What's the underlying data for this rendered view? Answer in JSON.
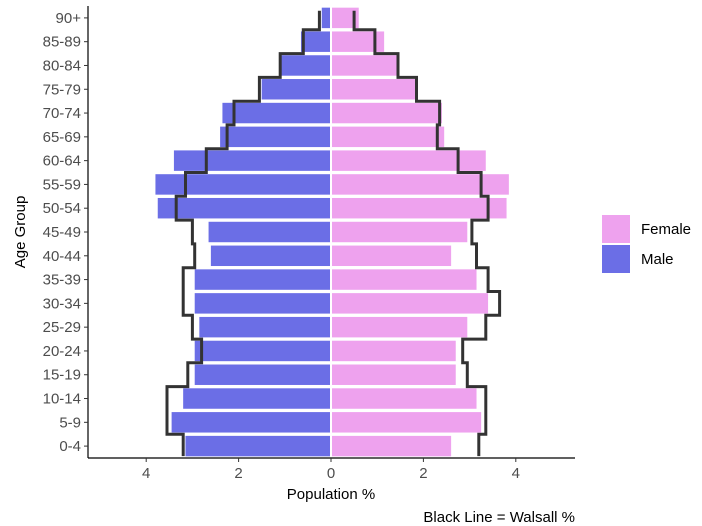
{
  "chart_data": {
    "type": "bar",
    "orientation": "horizontal-population-pyramid",
    "xlabel": "Population %",
    "ylabel": "Age Group",
    "caption": "Black Line = Walsall %",
    "xlim": [
      -5,
      5
    ],
    "xticks": [
      -4,
      -2,
      0,
      2,
      4
    ],
    "xtick_labels": [
      "4",
      "2",
      "0",
      "2",
      "4"
    ],
    "grid": false,
    "legend_placement": "right",
    "categories": [
      "0-4",
      "5-9",
      "10-14",
      "15-19",
      "20-24",
      "25-29",
      "30-34",
      "35-39",
      "40-44",
      "45-49",
      "50-54",
      "55-59",
      "60-64",
      "65-69",
      "70-74",
      "75-79",
      "80-84",
      "85-89",
      "90+"
    ],
    "series": [
      {
        "name": "Male",
        "color": "#6b6ee6",
        "side": "left",
        "values": [
          3.15,
          3.45,
          3.2,
          2.95,
          2.95,
          2.85,
          2.95,
          2.95,
          2.6,
          2.65,
          3.75,
          3.8,
          3.4,
          2.4,
          2.35,
          1.5,
          1.1,
          0.65,
          0.2
        ]
      },
      {
        "name": "Female",
        "color": "#eea2ee",
        "side": "right",
        "values": [
          2.6,
          3.25,
          3.15,
          2.7,
          2.7,
          2.95,
          3.4,
          3.15,
          2.6,
          2.95,
          3.8,
          3.85,
          3.35,
          2.45,
          2.4,
          1.85,
          1.45,
          1.15,
          0.6
        ]
      }
    ],
    "reference_line": {
      "color": "#333333",
      "male": [
        3.2,
        3.55,
        3.55,
        3.1,
        2.8,
        3.0,
        3.2,
        3.2,
        2.95,
        3.0,
        3.35,
        3.15,
        2.7,
        2.25,
        2.1,
        1.55,
        1.1,
        0.6,
        0.25
      ],
      "female": [
        3.2,
        3.35,
        3.35,
        2.95,
        2.85,
        3.35,
        3.65,
        3.4,
        3.15,
        3.05,
        3.4,
        3.25,
        2.75,
        2.3,
        2.35,
        1.85,
        1.45,
        0.95,
        0.5
      ]
    }
  }
}
